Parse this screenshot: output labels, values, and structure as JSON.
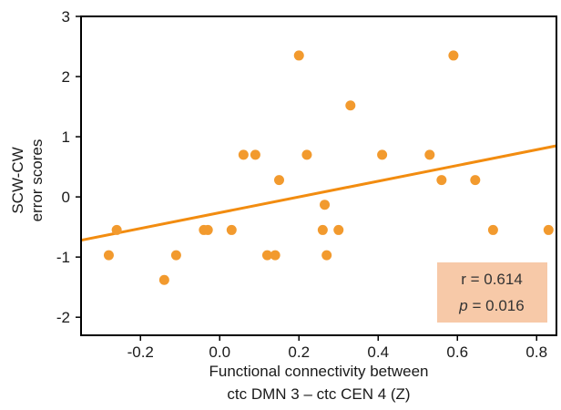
{
  "chart_data": {
    "type": "scatter",
    "xlabel_lines": [
      "Functional connectivity between",
      "ctc DMN 3 – ctc CEN 4 (Z)"
    ],
    "ylabel_lines": [
      "SCW-CW",
      "error scores"
    ],
    "xlim": [
      -0.35,
      0.85
    ],
    "ylim": [
      -2.3,
      3
    ],
    "xticks": [
      -0.2,
      0.0,
      0.2,
      0.4,
      0.6,
      0.8
    ],
    "xtick_labels": [
      "-0.2",
      "0.0",
      "0.2",
      "0.4",
      "0.6",
      "0.8"
    ],
    "yticks": [
      -2,
      -1,
      0,
      1,
      2,
      3
    ],
    "ytick_labels": [
      "-2",
      "-1",
      "0",
      "1",
      "2",
      "3"
    ],
    "grid": false,
    "colors": {
      "points": "#f29a2e",
      "line": "#f28c10",
      "stat_box": "#f7c9a8",
      "axis": "#000000"
    },
    "points": [
      {
        "x": -0.28,
        "y": -0.97
      },
      {
        "x": -0.26,
        "y": -0.55
      },
      {
        "x": -0.14,
        "y": -1.38
      },
      {
        "x": -0.11,
        "y": -0.97
      },
      {
        "x": -0.04,
        "y": -0.55
      },
      {
        "x": -0.03,
        "y": -0.55
      },
      {
        "x": 0.03,
        "y": -0.55
      },
      {
        "x": 0.06,
        "y": 0.7
      },
      {
        "x": 0.09,
        "y": 0.7
      },
      {
        "x": 0.12,
        "y": -0.97
      },
      {
        "x": 0.14,
        "y": -0.97
      },
      {
        "x": 0.15,
        "y": 0.28
      },
      {
        "x": 0.2,
        "y": 2.35
      },
      {
        "x": 0.22,
        "y": 0.7
      },
      {
        "x": 0.26,
        "y": -0.55
      },
      {
        "x": 0.265,
        "y": -0.13
      },
      {
        "x": 0.27,
        "y": -0.97
      },
      {
        "x": 0.3,
        "y": -0.55
      },
      {
        "x": 0.33,
        "y": 1.52
      },
      {
        "x": 0.41,
        "y": 0.7
      },
      {
        "x": 0.53,
        "y": 0.7
      },
      {
        "x": 0.56,
        "y": 0.28
      },
      {
        "x": 0.59,
        "y": 2.35
      },
      {
        "x": 0.645,
        "y": 0.28
      },
      {
        "x": 0.69,
        "y": -0.55
      },
      {
        "x": 0.83,
        "y": -0.55
      }
    ],
    "regression": {
      "x": [
        -0.35,
        0.85
      ],
      "y": [
        -0.72,
        0.85
      ]
    },
    "annotation": {
      "r_text": "r = 0.614",
      "p_symbol": "p",
      "p_text": " = 0.016",
      "placement": "bottom-right"
    }
  }
}
